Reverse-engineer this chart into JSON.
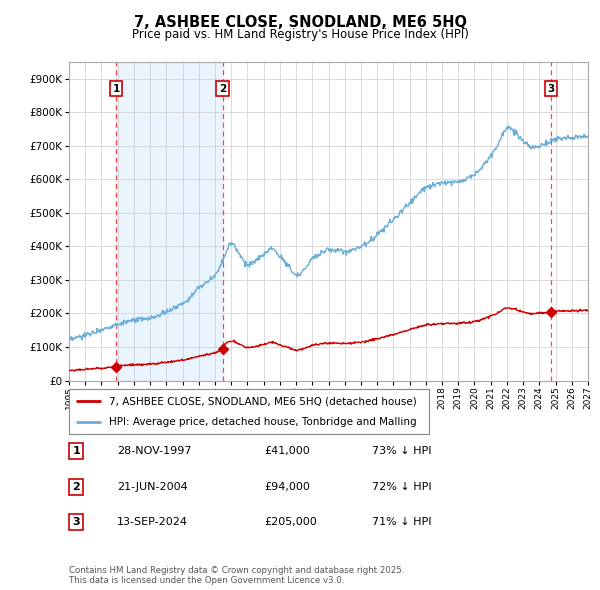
{
  "title": "7, ASHBEE CLOSE, SNODLAND, ME6 5HQ",
  "subtitle": "Price paid vs. HM Land Registry's House Price Index (HPI)",
  "xlim": [
    1995,
    2027
  ],
  "ylim": [
    0,
    950000
  ],
  "yticks": [
    0,
    100000,
    200000,
    300000,
    400000,
    500000,
    600000,
    700000,
    800000,
    900000
  ],
  "ytick_labels": [
    "£0",
    "£100K",
    "£200K",
    "£300K",
    "£400K",
    "£500K",
    "£600K",
    "£700K",
    "£800K",
    "£900K"
  ],
  "sale_dates": [
    1997.91,
    2004.47,
    2024.71
  ],
  "sale_prices": [
    41000,
    94000,
    205000
  ],
  "sale_labels": [
    "1",
    "2",
    "3"
  ],
  "hpi_color": "#6baed6",
  "hpi_fill_color": "#c6dbef",
  "sale_color": "#cc0000",
  "vline_color": "#ff4444",
  "shade_color": "#ddeeff",
  "legend_label_sales": "7, ASHBEE CLOSE, SNODLAND, ME6 5HQ (detached house)",
  "legend_label_hpi": "HPI: Average price, detached house, Tonbridge and Malling",
  "table_rows": [
    [
      "1",
      "28-NOV-1997",
      "£41,000",
      "73% ↓ HPI"
    ],
    [
      "2",
      "21-JUN-2004",
      "£94,000",
      "72% ↓ HPI"
    ],
    [
      "3",
      "13-SEP-2024",
      "£205,000",
      "71% ↓ HPI"
    ]
  ],
  "footnote": "Contains HM Land Registry data © Crown copyright and database right 2025.\nThis data is licensed under the Open Government Licence v3.0.",
  "background_color": "#ffffff",
  "grid_color": "#cccccc"
}
